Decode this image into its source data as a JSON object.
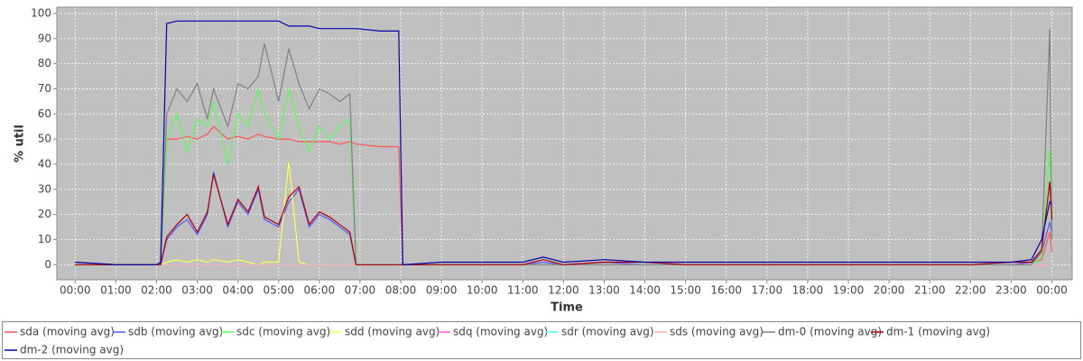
{
  "chart_data": {
    "type": "line",
    "x_label": "Time",
    "y_label": "% util",
    "x": [
      0,
      1,
      2,
      2.1,
      2.25,
      2.5,
      2.75,
      3,
      3.25,
      3.4,
      3.75,
      4,
      4.25,
      4.5,
      4.65,
      5,
      5.25,
      5.5,
      5.75,
      6,
      6.25,
      6.5,
      6.75,
      6.9,
      7.5,
      7.95,
      8.05,
      9,
      10,
      11,
      11.5,
      12,
      13,
      14,
      15,
      16,
      17,
      18,
      19,
      20,
      21,
      22,
      23,
      23.5,
      23.75,
      23.95,
      24
    ],
    "xlim": [
      -0.45,
      24.5
    ],
    "xticks": [
      {
        "value": 0,
        "label": "00:00"
      },
      {
        "value": 1,
        "label": "01:00"
      },
      {
        "value": 2,
        "label": "02:00"
      },
      {
        "value": 3,
        "label": "03:00"
      },
      {
        "value": 4,
        "label": "04:00"
      },
      {
        "value": 5,
        "label": "05:00"
      },
      {
        "value": 6,
        "label": "06:00"
      },
      {
        "value": 7,
        "label": "07:00"
      },
      {
        "value": 8,
        "label": "08:00"
      },
      {
        "value": 9,
        "label": "09:00"
      },
      {
        "value": 10,
        "label": "10:00"
      },
      {
        "value": 11,
        "label": "11:00"
      },
      {
        "value": 12,
        "label": "12:00"
      },
      {
        "value": 13,
        "label": "13:00"
      },
      {
        "value": 14,
        "label": "14:00"
      },
      {
        "value": 15,
        "label": "15:00"
      },
      {
        "value": 16,
        "label": "16:00"
      },
      {
        "value": 17,
        "label": "17:00"
      },
      {
        "value": 18,
        "label": "18:00"
      },
      {
        "value": 19,
        "label": "19:00"
      },
      {
        "value": 20,
        "label": "20:00"
      },
      {
        "value": 21,
        "label": "21:00"
      },
      {
        "value": 22,
        "label": "22:00"
      },
      {
        "value": 23,
        "label": "23:00"
      },
      {
        "value": 24,
        "label": "00:00"
      }
    ],
    "ylim": [
      -6,
      102.5
    ],
    "yticks": [
      0,
      10,
      20,
      30,
      40,
      50,
      60,
      70,
      80,
      90,
      100
    ],
    "grid": true,
    "series": [
      {
        "name": "sda (moving avg)",
        "color": "#ff5555",
        "values": [
          1,
          0,
          0,
          0,
          50,
          50,
          51,
          50,
          52,
          55,
          50,
          51,
          50,
          52,
          51,
          50,
          50,
          49,
          49,
          49,
          49,
          48,
          49,
          48,
          47,
          47,
          0,
          0,
          0,
          0,
          0,
          0,
          0,
          0,
          0,
          0,
          0,
          0,
          0,
          0,
          0,
          0,
          0,
          1,
          2,
          13,
          5
        ]
      },
      {
        "name": "sdb (moving avg)",
        "color": "#5555ff",
        "values": [
          0,
          0,
          0,
          0,
          10,
          15,
          18,
          12,
          20,
          37,
          15,
          25,
          20,
          30,
          18,
          15,
          25,
          30,
          15,
          20,
          18,
          15,
          12,
          0,
          0,
          0,
          0,
          0,
          0,
          0,
          1,
          0,
          1,
          0,
          0,
          0,
          0,
          0,
          0,
          0,
          0,
          0,
          0,
          1,
          5,
          17,
          12
        ]
      },
      {
        "name": "sdc (moving avg)",
        "color": "#55ff55",
        "values": [
          0,
          0,
          0,
          0,
          50,
          60,
          45,
          58,
          55,
          65,
          40,
          60,
          55,
          70,
          60,
          50,
          70,
          55,
          45,
          55,
          50,
          55,
          58,
          0,
          0,
          0,
          0,
          0,
          0,
          0,
          0,
          0,
          0,
          0,
          0,
          0,
          0,
          0,
          0,
          0,
          0,
          0,
          0,
          0,
          3,
          46,
          10
        ]
      },
      {
        "name": "sdd (moving avg)",
        "color": "#ffff55",
        "values": [
          0,
          0,
          0,
          0,
          1,
          2,
          1,
          2,
          1,
          2,
          1,
          2,
          1,
          0,
          1,
          1,
          41,
          1,
          0,
          0,
          0,
          0,
          0,
          0,
          0,
          0,
          0,
          0,
          0,
          0,
          0,
          0,
          0,
          0,
          0,
          0,
          0,
          0,
          0,
          0,
          0,
          0,
          0,
          0,
          0,
          0,
          0
        ]
      },
      {
        "name": "sdq (moving avg)",
        "color": "#ff55ff",
        "values": [
          0,
          0,
          0,
          0,
          0,
          0,
          0,
          0,
          0,
          0,
          0,
          0,
          0,
          0,
          0,
          0,
          0,
          0,
          0,
          0,
          0,
          0,
          0,
          0,
          0,
          0,
          0,
          0,
          0,
          0,
          0,
          0,
          0,
          0,
          0,
          0,
          0,
          0,
          0,
          0,
          0,
          0,
          0,
          0,
          0,
          0,
          0
        ]
      },
      {
        "name": "sdr (moving avg)",
        "color": "#55ffff",
        "values": [
          0,
          0,
          0,
          0,
          0,
          0,
          0,
          0,
          0,
          0,
          0,
          0,
          0,
          0,
          0,
          0,
          0,
          0,
          0,
          0,
          0,
          0,
          0,
          0,
          0,
          0,
          0,
          0,
          0,
          0,
          0,
          0,
          0,
          0,
          0,
          0,
          0,
          0,
          0,
          0,
          0,
          0,
          0,
          0,
          0,
          0,
          0
        ]
      },
      {
        "name": "sds (moving avg)",
        "color": "#ffafaf",
        "values": [
          0,
          0,
          0,
          0,
          0,
          0,
          0,
          0,
          0,
          0,
          0,
          0,
          0,
          0,
          0,
          0,
          0,
          0,
          0,
          0,
          0,
          0,
          0,
          0,
          0,
          0,
          0,
          0,
          0,
          0,
          0,
          0,
          0,
          0,
          0,
          0,
          0,
          0,
          0,
          0,
          0,
          0,
          0,
          0,
          0,
          0,
          0
        ]
      },
      {
        "name": "dm-0 (moving avg)",
        "color": "#808080",
        "values": [
          0,
          0,
          0,
          0,
          60,
          70,
          65,
          72,
          58,
          70,
          55,
          72,
          70,
          75,
          88,
          65,
          86,
          72,
          62,
          70,
          68,
          65,
          68,
          0,
          0,
          0,
          0,
          0,
          0,
          0,
          0,
          0,
          0,
          0,
          0,
          0,
          0,
          0,
          0,
          0,
          0,
          0,
          0,
          0,
          5,
          94,
          10
        ]
      },
      {
        "name": "dm-1 (moving avg)",
        "color": "#aa0000",
        "values": [
          0,
          0,
          0,
          0,
          11,
          16,
          20,
          13,
          21,
          36,
          16,
          26,
          21,
          31,
          19,
          16,
          27,
          31,
          16,
          21,
          19,
          16,
          13,
          0,
          0,
          0,
          0,
          0,
          0,
          0,
          2,
          0,
          1,
          1,
          0,
          0,
          0,
          0,
          0,
          0,
          0,
          0,
          1,
          1,
          6,
          33,
          18
        ]
      },
      {
        "name": "dm-2 (moving avg)",
        "color": "#0000aa",
        "values": [
          1,
          0,
          0,
          1,
          96,
          97,
          97,
          97,
          97,
          97,
          97,
          97,
          97,
          97,
          97,
          97,
          95,
          95,
          95,
          94,
          94,
          94,
          94,
          94,
          93,
          93,
          0,
          1,
          1,
          1,
          3,
          1,
          2,
          1,
          1,
          1,
          1,
          1,
          1,
          1,
          1,
          1,
          1,
          2,
          10,
          25,
          24
        ]
      }
    ]
  }
}
